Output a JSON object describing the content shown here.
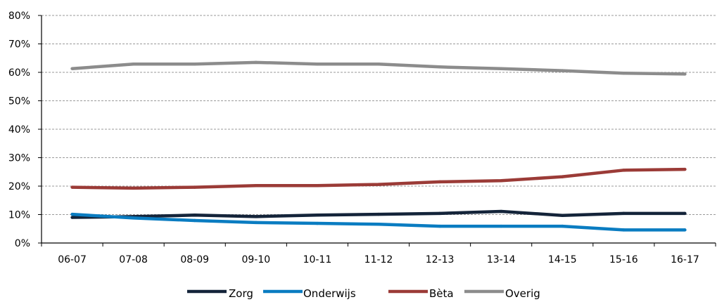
{
  "chart_data": {
    "type": "line",
    "categories": [
      "06-07",
      "07-08",
      "08-09",
      "09-10",
      "10-11",
      "11-12",
      "12-13",
      "13-14",
      "14-15",
      "15-16",
      "16-17"
    ],
    "y_ticks": [
      "0%",
      "10%",
      "20%",
      "30%",
      "40%",
      "50%",
      "60%",
      "70%",
      "80%"
    ],
    "ylim": [
      0,
      80
    ],
    "y_unit": "%",
    "grid": "horizontal dashed",
    "legend_position": "bottom",
    "series": [
      {
        "name": "Zorg",
        "color": "#14243a",
        "values": [
          9,
          9.3,
          9.8,
          9.3,
          9.8,
          10.1,
          10.4,
          11.1,
          9.7,
          10.4,
          10.4
        ]
      },
      {
        "name": "Onderwijs",
        "color": "#0a7cc1",
        "values": [
          10.1,
          8.8,
          7.9,
          7.2,
          6.9,
          6.6,
          5.9,
          5.9,
          5.9,
          4.6,
          4.6
        ]
      },
      {
        "name": "Bèta",
        "color": "#9b3b37",
        "values": [
          19.6,
          19.3,
          19.6,
          20.2,
          20.2,
          20.6,
          21.5,
          21.9,
          23.3,
          25.6,
          25.9
        ]
      },
      {
        "name": "Overig",
        "color": "#8c8c8c",
        "values": [
          61.3,
          62.9,
          62.9,
          63.5,
          62.9,
          62.9,
          61.9,
          61.3,
          60.6,
          59.7,
          59.4
        ]
      }
    ]
  }
}
